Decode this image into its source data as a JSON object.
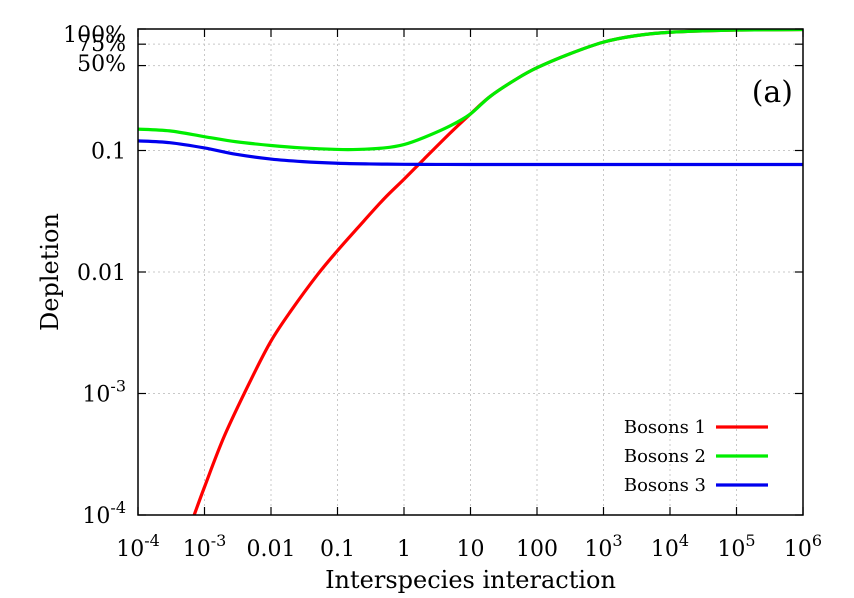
{
  "chart_data": {
    "type": "line",
    "panel_label": "(a)",
    "xlabel": "Interspecies interaction",
    "ylabel": "Depletion",
    "x_scale": "log",
    "y_scale": "log",
    "xlim": [
      0.0001,
      1000000
    ],
    "ylim": [
      0.0001,
      1
    ],
    "grid": true,
    "legend_position": "bottom-right",
    "x_ticks": [
      {
        "value": 0.0001,
        "base": "10",
        "exp": "-4"
      },
      {
        "value": 0.001,
        "base": "10",
        "exp": "-3"
      },
      {
        "value": 0.01,
        "label": "0.01"
      },
      {
        "value": 0.1,
        "label": "0.1"
      },
      {
        "value": 1,
        "label": "1"
      },
      {
        "value": 10,
        "label": "10"
      },
      {
        "value": 100,
        "label": "100"
      },
      {
        "value": 1000,
        "base": "10",
        "exp": "3"
      },
      {
        "value": 10000,
        "base": "10",
        "exp": "4"
      },
      {
        "value": 100000,
        "base": "10",
        "exp": "5"
      },
      {
        "value": 1000000,
        "base": "10",
        "exp": "6"
      }
    ],
    "y_ticks": [
      {
        "value": 0.0001,
        "base": "10",
        "exp": "-4"
      },
      {
        "value": 0.001,
        "base": "10",
        "exp": "-3"
      },
      {
        "value": 0.01,
        "label": "0.01"
      },
      {
        "value": 0.1,
        "label": "0.1"
      },
      {
        "value": 0.5,
        "label": "50%"
      },
      {
        "value": 0.75,
        "label": "75%"
      },
      {
        "value": 1,
        "label": "100%"
      }
    ],
    "series": [
      {
        "name": "Bosons 1",
        "color": "#ff0000",
        "x": [
          0.0007,
          0.001,
          0.002,
          0.005,
          0.01,
          0.02,
          0.05,
          0.1,
          0.2,
          0.5,
          1,
          2,
          5,
          10,
          20,
          50,
          100,
          300,
          1000,
          3000,
          10000,
          100000,
          1000000
        ],
        "y": [
          0.0001,
          0.00017,
          0.00045,
          0.0013,
          0.0027,
          0.0048,
          0.0095,
          0.015,
          0.023,
          0.04,
          0.058,
          0.085,
          0.14,
          0.2,
          0.28,
          0.39,
          0.48,
          0.62,
          0.78,
          0.88,
          0.94,
          0.98,
          0.99
        ]
      },
      {
        "name": "Bosons 2",
        "color": "#00ee00",
        "x": [
          0.0001,
          0.0003,
          0.001,
          0.003,
          0.01,
          0.03,
          0.1,
          0.2,
          0.5,
          1,
          2,
          5,
          10,
          20,
          50,
          100,
          300,
          1000,
          3000,
          10000,
          100000,
          1000000
        ],
        "y": [
          0.15,
          0.145,
          0.13,
          0.118,
          0.11,
          0.105,
          0.102,
          0.102,
          0.105,
          0.112,
          0.128,
          0.16,
          0.2,
          0.28,
          0.39,
          0.48,
          0.62,
          0.78,
          0.88,
          0.94,
          0.98,
          0.99
        ]
      },
      {
        "name": "Bosons 3",
        "color": "#0000ee",
        "x": [
          0.0001,
          0.0003,
          0.001,
          0.003,
          0.01,
          0.03,
          0.1,
          0.3,
          1,
          3,
          10,
          100,
          1000,
          10000,
          100000,
          1000000
        ],
        "y": [
          0.12,
          0.116,
          0.105,
          0.093,
          0.085,
          0.081,
          0.0785,
          0.0775,
          0.077,
          0.0768,
          0.0767,
          0.0767,
          0.0767,
          0.0767,
          0.0767,
          0.0767
        ]
      }
    ]
  }
}
